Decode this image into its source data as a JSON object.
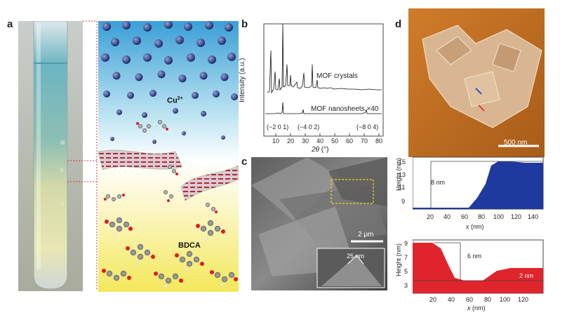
{
  "panels": {
    "a": {
      "label": "a",
      "tube_labels": [
        "iii",
        "ii",
        "i"
      ],
      "scheme_ion": "Cu",
      "scheme_ion_charge": "2+",
      "scheme_linker": "BDCA"
    },
    "b": {
      "label": "b",
      "ylabel": "Intensity (a.u.)",
      "xlabel_symbol": "2θ",
      "xlabel_unit": "(°)",
      "xticks": [
        "10",
        "20",
        "30",
        "40",
        "50",
        "60",
        "70",
        "80"
      ],
      "series": [
        {
          "name": "MOF crystals"
        },
        {
          "name": "MOF nanosheets",
          "multiplier": "×40"
        }
      ],
      "peak_labels": [
        "(−2 0 1)",
        "(−4 0 2)",
        "(−8 0 4)"
      ]
    },
    "c": {
      "label": "c",
      "scalebar": "2 μm",
      "inset_label": "25 nm"
    },
    "d": {
      "label": "d",
      "scalebar": "500 nm",
      "profiles": [
        {
          "ylabel": "Height",
          "yunit": "(nm)",
          "xlabel": "x",
          "xunit": "(nm)",
          "yticks": [
            "9",
            "11",
            "13",
            "15"
          ],
          "xticks": [
            "20",
            "40",
            "60",
            "80",
            "100",
            "120",
            "140"
          ],
          "annotation": "8 nm",
          "color": "#1f3a9e"
        },
        {
          "ylabel": "Height",
          "yunit": "(nm)",
          "xlabel": "x",
          "xunit": "(nm)",
          "yticks": [
            "3",
            "5",
            "7",
            "9"
          ],
          "xticks": [
            "20",
            "40",
            "60",
            "80",
            "100",
            "120"
          ],
          "annotations": [
            "6 nm",
            "2 nm"
          ],
          "color": "#e0242b"
        }
      ]
    }
  }
}
